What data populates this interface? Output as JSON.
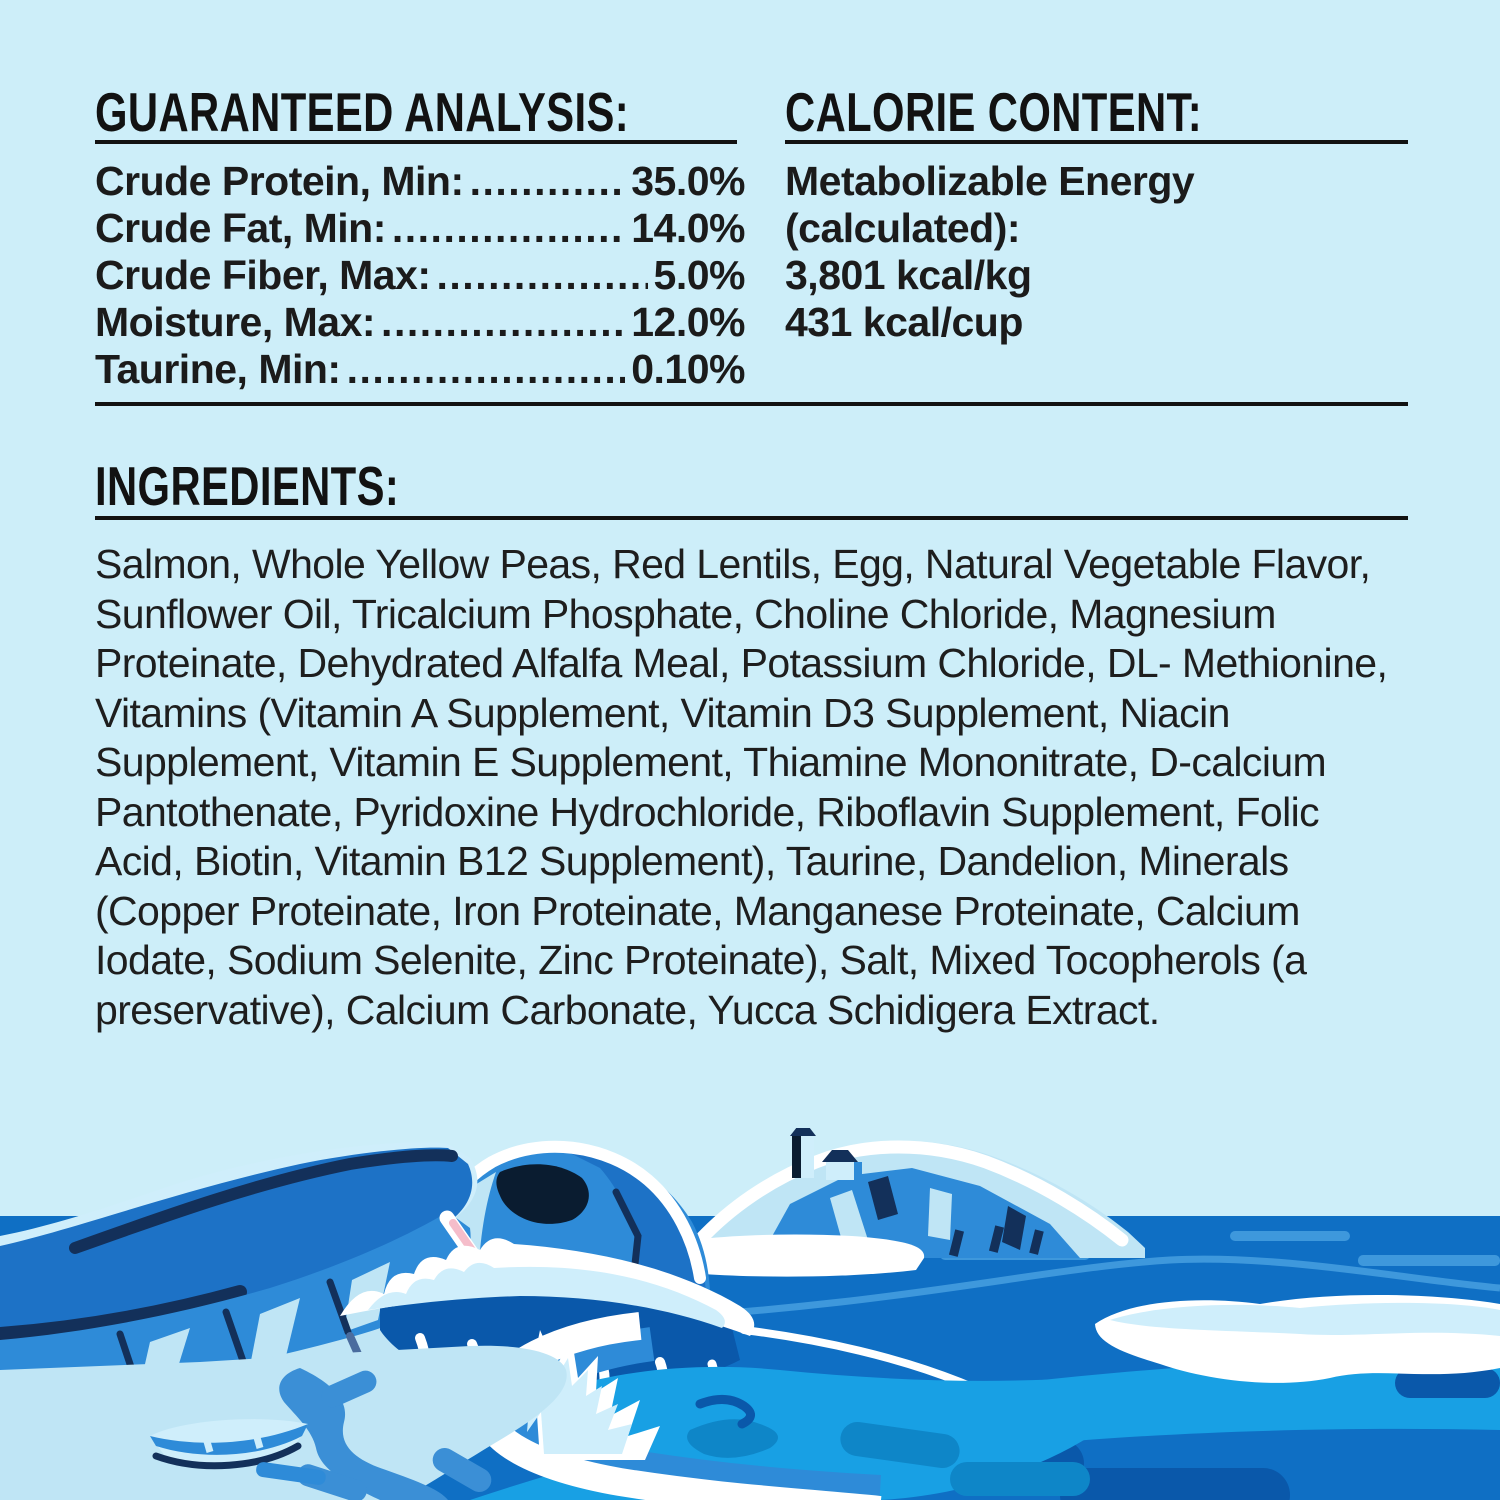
{
  "page": {
    "background": "#cdeef9",
    "text_color": "#1b1b1b"
  },
  "guaranteed_analysis": {
    "title": "GUARANTEED ANALYSIS:",
    "dot_leader": "................................................................................",
    "rows": [
      {
        "label": "Crude Protein, Min:",
        "value": "35.0%"
      },
      {
        "label": "Crude Fat, Min:",
        "value": "14.0%"
      },
      {
        "label": "Crude Fiber, Max:",
        "value": "5.0%"
      },
      {
        "label": "Moisture, Max:",
        "value": "12.0%"
      },
      {
        "label": "Taurine, Min:",
        "value": "0.10%"
      }
    ]
  },
  "calorie_content": {
    "title": "CALORIE CONTENT:",
    "lines": [
      "Metabolizable Energy",
      "(calculated):",
      "3,801 kcal/kg",
      "431 kcal/cup"
    ]
  },
  "ingredients": {
    "title": "INGREDIENTS:",
    "text": "Salmon, Whole Yellow Peas, Red Lentils, Egg, Natural Vegetable Flavor, Sunflower Oil, Tricalcium Phosphate, Choline Chloride, Magnesium Proteinate, Dehydrated Alfalfa Meal, Potassium Chloride, DL- Methionine, Vitamins (Vitamin A Supplement, Vitamin D3 Supplement, Niacin Supplement, Vitamin E Supplement, Thiamine Mononitrate, D-calcium Pantothenate, Pyridoxine Hydrochloride, Riboflavin Supplement, Folic Acid, Biotin, Vitamin B12 Supplement), Taurine, Dandelion, Minerals (Copper Proteinate, Iron Proteinate, Manganese Proteinate, Calcium Iodate, Sodium Selenite, Zinc Proteinate), Salt, Mixed Tocopherols (a preservative), Calcium Carbonate, Yucca Schidigera Extract."
  },
  "illustration": {
    "name": "coastal-cliffs-and-ocean-scene",
    "palette": {
      "sky": "#cdeef9",
      "deep_ocean": "#0f6fc4",
      "bright": "#18a0e4",
      "swirl": "#0e86c8",
      "ocean_dark": "#0a58aa",
      "streak": "#3e98dc",
      "plateau": "#1d72c6",
      "face": "#2e8bd8",
      "stream": "#3b8fd6",
      "pale": "#bfe5f5",
      "paler": "#cfeefb",
      "white": "#ffffff",
      "navy": "#13305a",
      "cave": "#0a1c30",
      "steel": "#4a6c9e",
      "pink": "#f5bdca"
    }
  }
}
